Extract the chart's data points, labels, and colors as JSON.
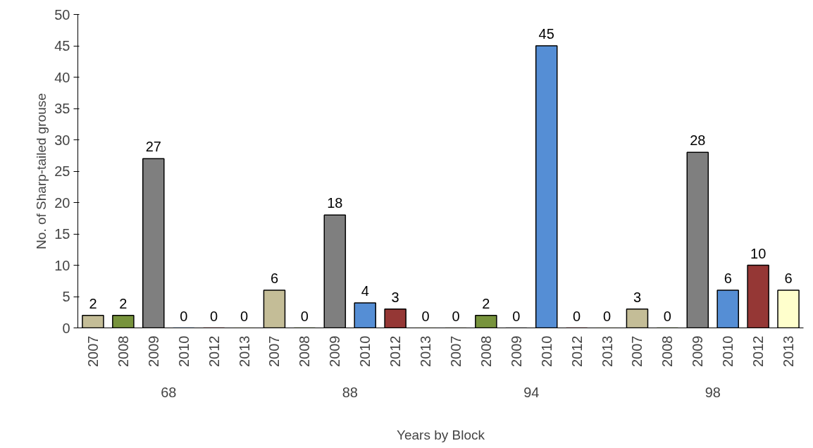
{
  "chart_data": {
    "type": "bar",
    "xlabel": "Years by Block",
    "ylabel": "No. of Sharp-tailed grouse",
    "categories": [
      "2007",
      "2008",
      "2009",
      "2010",
      "2012",
      "2013",
      "2007",
      "2008",
      "2009",
      "2010",
      "2012",
      "2013",
      "2007",
      "2008",
      "2009",
      "2010",
      "2012",
      "2013",
      "2007",
      "2008",
      "2009",
      "2010",
      "2012",
      "2013"
    ],
    "values": [
      2,
      2,
      27,
      0,
      0,
      0,
      6,
      0,
      18,
      4,
      3,
      0,
      0,
      2,
      0,
      45,
      0,
      0,
      3,
      0,
      28,
      6,
      10,
      6
    ],
    "colors": [
      "#c4bd97",
      "#77933c",
      "#7f7f7f",
      "#558ed5",
      "#953735",
      "#ffffcc",
      "#c4bd97",
      "#77933c",
      "#7f7f7f",
      "#558ed5",
      "#953735",
      "#ffffcc",
      "#c4bd97",
      "#77933c",
      "#7f7f7f",
      "#558ed5",
      "#953735",
      "#ffffcc",
      "#c4bd97",
      "#77933c",
      "#7f7f7f",
      "#558ed5",
      "#953735",
      "#ffffcc"
    ],
    "annotations": [
      "68",
      "88",
      "94",
      "98"
    ],
    "ylim": [
      0,
      50
    ],
    "yticks": [
      0,
      5,
      10,
      15,
      20,
      25,
      30,
      35,
      40,
      45,
      50
    ],
    "data_labels": true,
    "grid": false
  }
}
